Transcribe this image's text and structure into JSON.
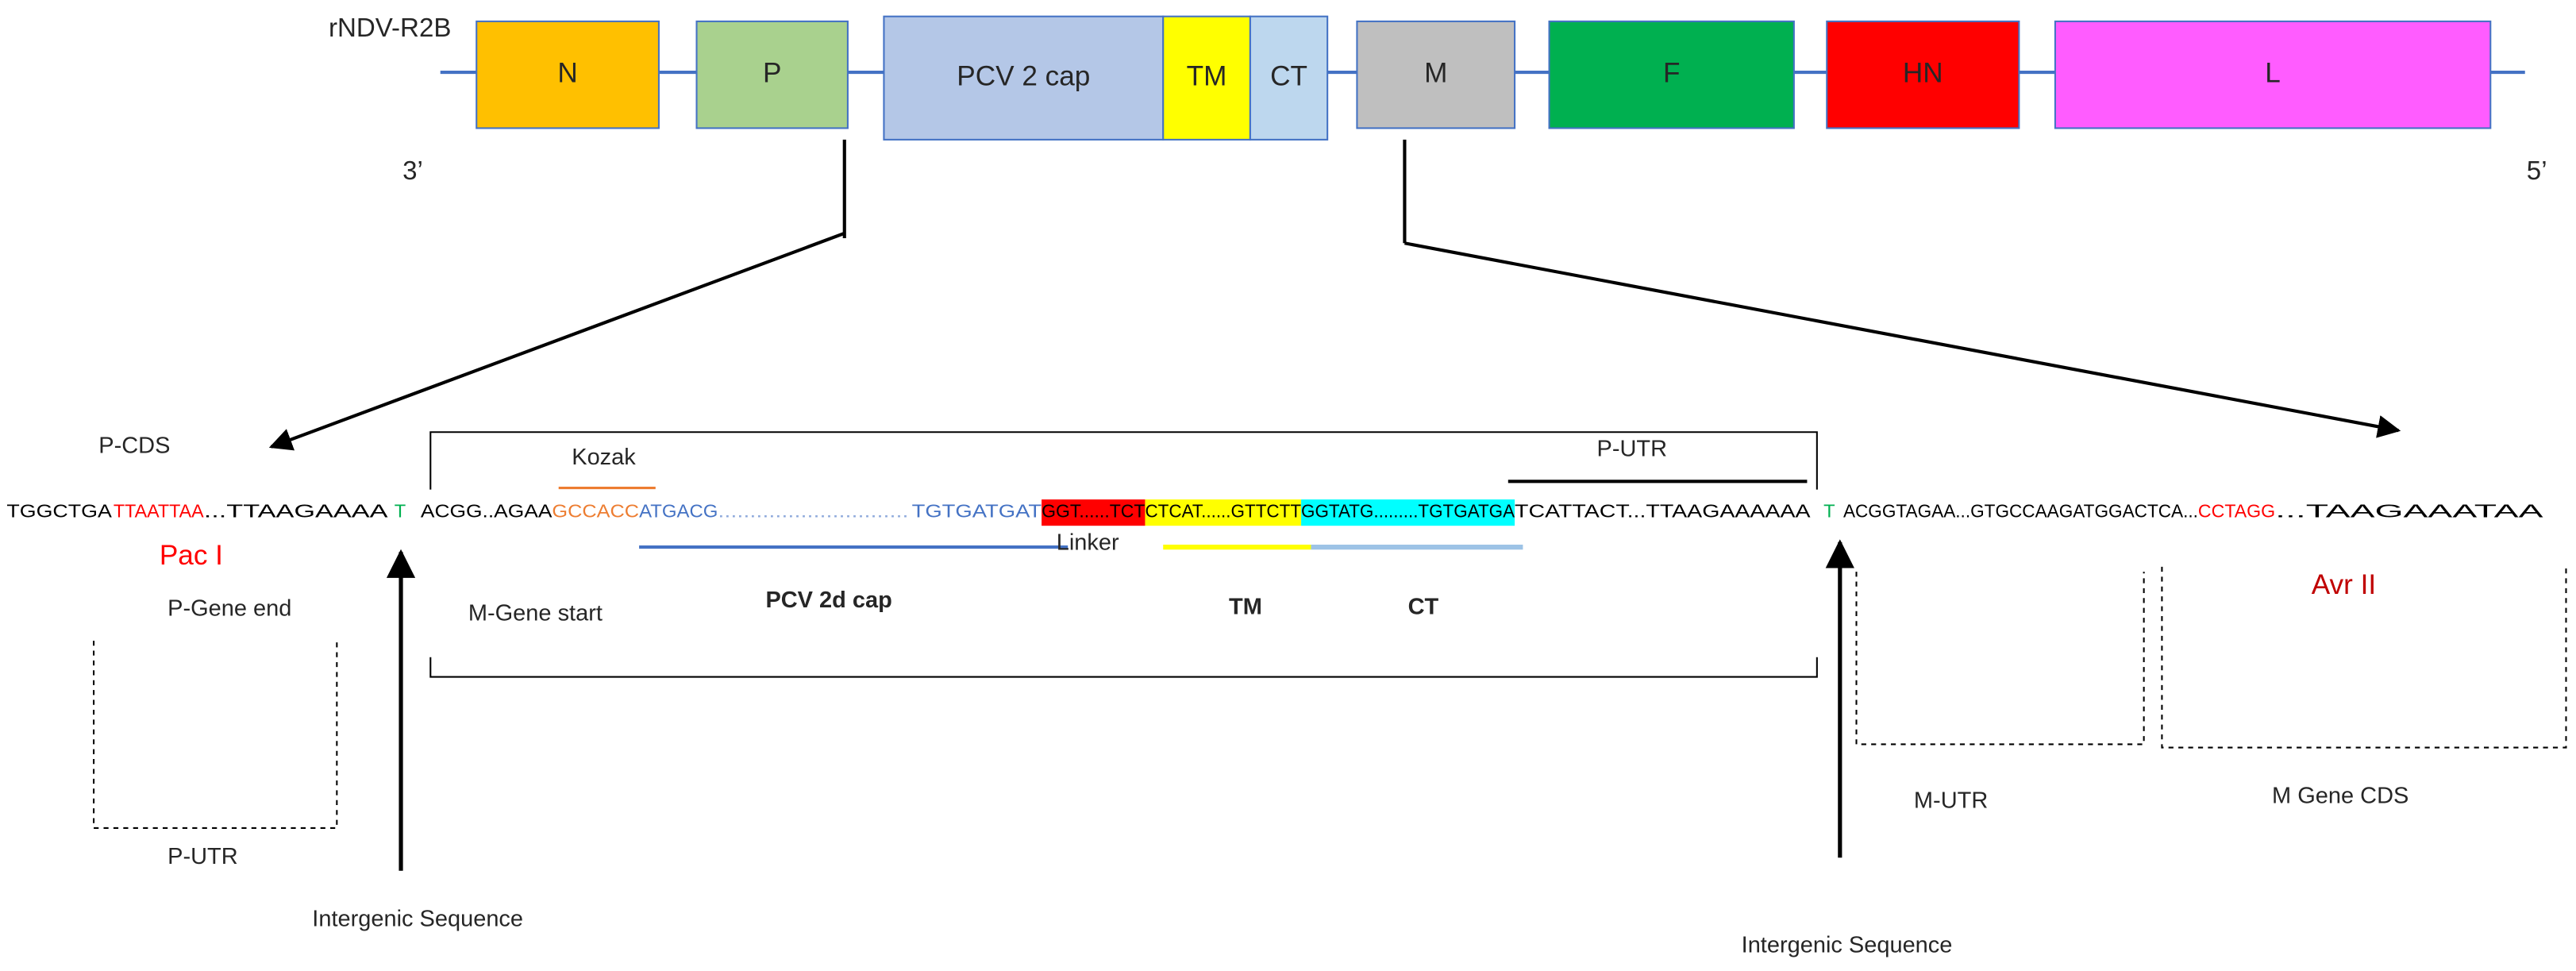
{
  "genome": {
    "name": "rNDV-R2B",
    "end3": "3’",
    "end5": "5’",
    "genes": [
      {
        "label": "N",
        "color": "#ffc000"
      },
      {
        "label": "P",
        "color": "#a9d18e"
      },
      {
        "label": "PCV 2 cap",
        "color": "#b4c7e7"
      },
      {
        "label": "TM",
        "color": "#ffff00"
      },
      {
        "label": "CT",
        "color": "#bdd7ee"
      },
      {
        "label": "M",
        "color": "#bfbfbf"
      },
      {
        "label": "F",
        "color": "#00b050"
      },
      {
        "label": "HN",
        "color": "#ff0000"
      },
      {
        "label": "L",
        "color": "#ff5cff"
      }
    ]
  },
  "sequence": {
    "segments": [
      "TGGCTGA",
      "TTAATTAA",
      "...TTAAGAAAA",
      "T",
      "ACGG..AGAA",
      "GCCACC",
      "ATGACG",
      "..............................",
      "TGTGATGAT",
      "GGT......TCT",
      "CTCAT......GTTCTT",
      "GGTATG.........TGTGATGA",
      "TCATTACT...TTAAGAAAAAA",
      "T",
      "ACGGTAGAA...GTGCCAAGATGGACTCA...",
      "CCTAGG",
      "...TAAGAAATAA"
    ]
  },
  "annotations": {
    "p_cds": "P-CDS",
    "kozak": "Kozak",
    "p_utr_top": "P-UTR",
    "pac1": "Pac I",
    "p_gene_end": "P-Gene end",
    "m_gene_start": "M-Gene start",
    "pcv2d_cap": "PCV 2d cap",
    "linker": "Linker",
    "tm": "TM",
    "ct": "CT",
    "avr2": "Avr II",
    "p_utr_bottom": "P-UTR",
    "m_utr": "M-UTR",
    "m_gene_cds": "M Gene CDS",
    "intergenic_left": "Intergenic Sequence",
    "intergenic_right": "Intergenic Sequence"
  }
}
